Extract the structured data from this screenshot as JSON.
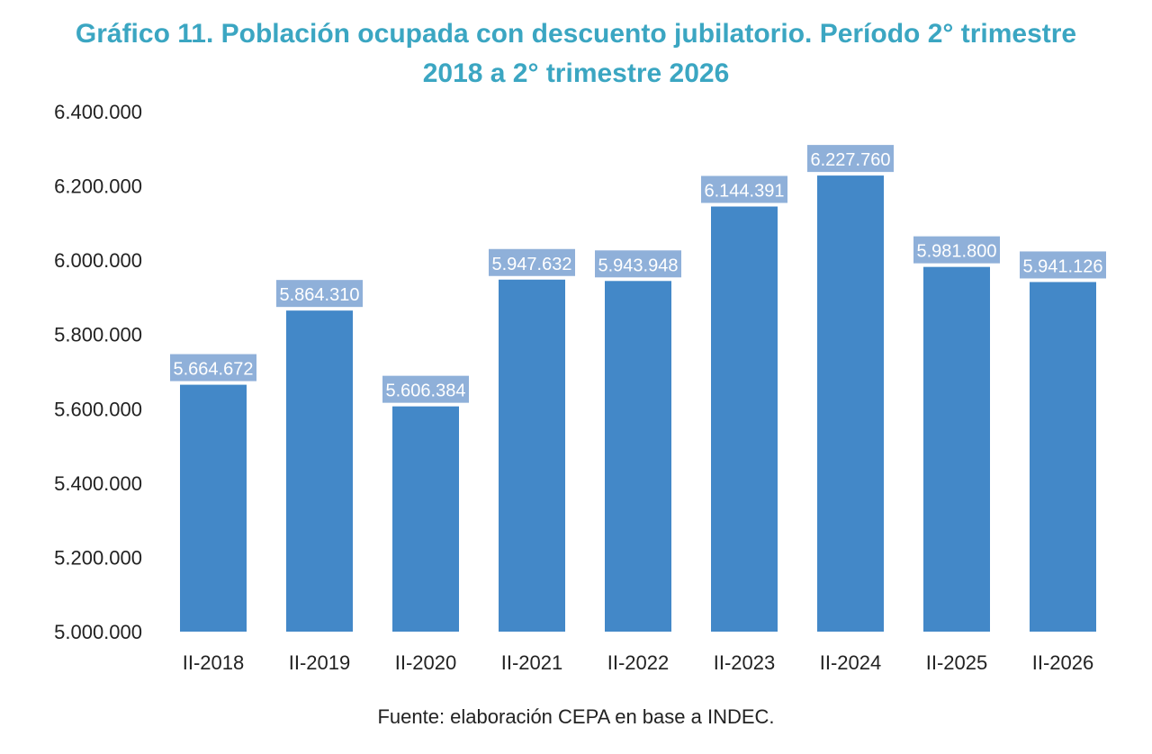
{
  "title_line1": "Gráfico 11. Población ocupada con descuento jubilatorio. Período 2° trimestre",
  "title_line2": "2018 a 2° trimestre 2026",
  "source": "Fuente: elaboración CEPA en base a INDEC.",
  "colors": {
    "title": "#3ba6c2",
    "bar": "#4388c8",
    "label_bg": "#8fb0d9",
    "label_text": "#ffffff"
  },
  "chart_data": {
    "type": "bar",
    "title": "Gráfico 11. Población ocupada con descuento jubilatorio. Período 2° trimestre 2018 a 2° trimestre 2026",
    "xlabel": "",
    "ylabel": "",
    "ylim": [
      5000000,
      6400000
    ],
    "grid": false,
    "legend": "none",
    "categories": [
      "II-2018",
      "II-2019",
      "II-2020",
      "II-2021",
      "II-2022",
      "II-2023",
      "II-2024",
      "II-2025",
      "II-2026"
    ],
    "values": [
      5664672,
      5864310,
      5606384,
      5947632,
      5943948,
      6144391,
      6227760,
      5981800,
      5941126
    ],
    "value_labels": [
      "5.664.672",
      "5.864.310",
      "5.606.384",
      "5.947.632",
      "5.943.948",
      "6.144.391",
      "6.227.760",
      "5.981.800",
      "5.941.126"
    ],
    "y_ticks": [
      5000000,
      5200000,
      5400000,
      5600000,
      5800000,
      6000000,
      6200000,
      6400000
    ],
    "y_tick_labels": [
      "5.000.000",
      "5.200.000",
      "5.400.000",
      "5.600.000",
      "5.800.000",
      "6.000.000",
      "6.200.000",
      "6.400.000"
    ]
  }
}
